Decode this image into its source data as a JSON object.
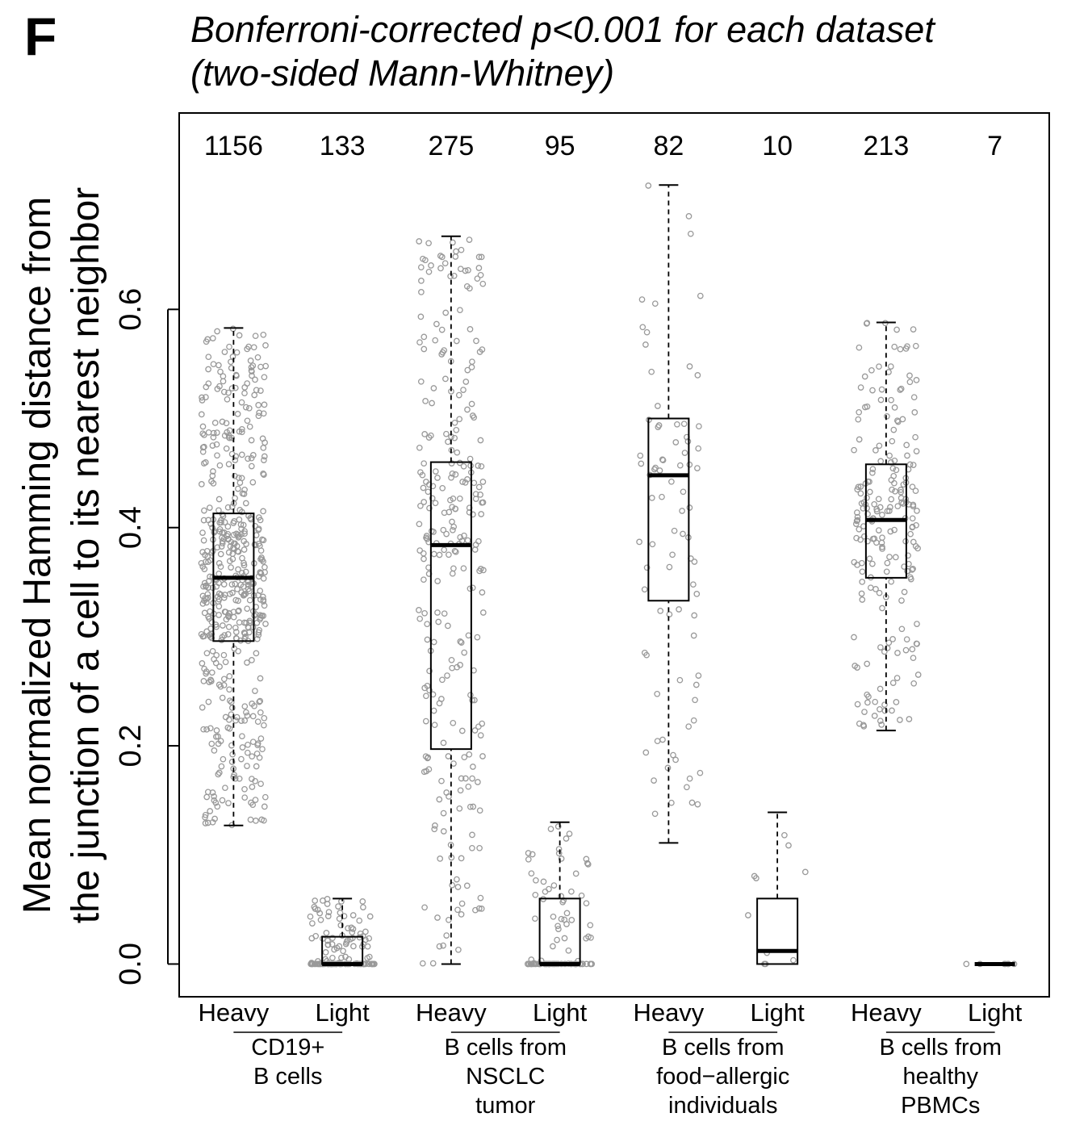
{
  "panel_label": "F",
  "chart_data": {
    "type": "box",
    "title_lines": [
      "Bonferroni-corrected p<0.001 for each dataset",
      "(two-sided Mann-Whitney)"
    ],
    "ylabel_lines": [
      "Mean normalized Hamming distance from",
      "the junction of a cell to its nearest neighbor"
    ],
    "xlabel": "",
    "ylim": [
      -0.03,
      0.78
    ],
    "yticks": [
      0.0,
      0.2,
      0.4,
      0.6
    ],
    "ytick_labels": [
      "0.0",
      "0.2",
      "0.4",
      "0.6"
    ],
    "grid": false,
    "legend": "none",
    "point_color": "#999999",
    "categories": [
      "Heavy",
      "Light",
      "Heavy",
      "Light",
      "Heavy",
      "Light",
      "Heavy",
      "Light"
    ],
    "groups": [
      {
        "label_lines": [
          "CD19+",
          "B cells"
        ]
      },
      {
        "label_lines": [
          "B cells from",
          "NSCLC",
          "tumor"
        ]
      },
      {
        "label_lines": [
          "B cells from",
          "food−allergic",
          "individuals"
        ]
      },
      {
        "label_lines": [
          "B cells from",
          "healthy",
          "PBMCs"
        ]
      }
    ],
    "boxes": [
      {
        "n": "1156",
        "whisker_low": 0.127,
        "q1": 0.296,
        "median": 0.354,
        "q3": 0.413,
        "whisker_high": 0.583
      },
      {
        "n": "133",
        "whisker_low": 0.0,
        "q1": 0.0,
        "median": 0.0,
        "q3": 0.025,
        "whisker_high": 0.06
      },
      {
        "n": "275",
        "whisker_low": 0.0,
        "q1": 0.197,
        "median": 0.384,
        "q3": 0.46,
        "whisker_high": 0.667
      },
      {
        "n": "95",
        "whisker_low": 0.0,
        "q1": 0.0,
        "median": 0.0,
        "q3": 0.06,
        "whisker_high": 0.13
      },
      {
        "n": "82",
        "whisker_low": 0.111,
        "q1": 0.333,
        "median": 0.448,
        "q3": 0.5,
        "whisker_high": 0.714
      },
      {
        "n": "10",
        "whisker_low": 0.0,
        "q1": 0.0,
        "median": 0.012,
        "q3": 0.06,
        "whisker_high": 0.139
      },
      {
        "n": "213",
        "whisker_low": 0.214,
        "q1": 0.354,
        "median": 0.407,
        "q3": 0.458,
        "whisker_high": 0.588
      },
      {
        "n": "7",
        "whisker_low": 0.0,
        "q1": 0.0,
        "median": 0.0,
        "q3": 0.0,
        "whisker_high": 0.0
      }
    ]
  }
}
